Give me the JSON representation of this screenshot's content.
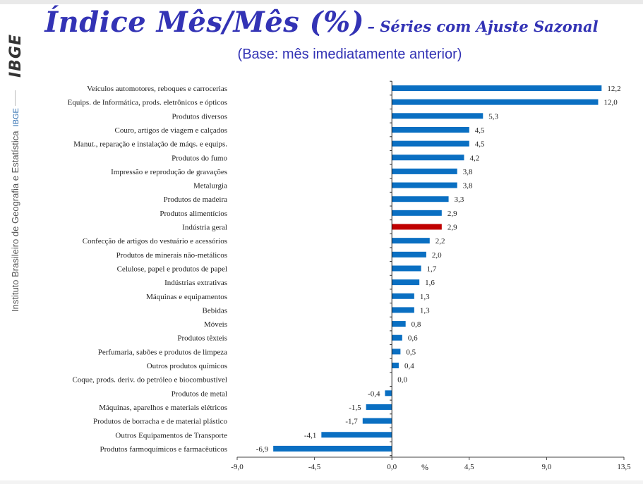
{
  "header": {
    "title": "Índice Mês/Mês (%)",
    "title_suffix": "– Séries com Ajuste Sazonal",
    "subtitle": "(Base: mês imediatamente anterior)"
  },
  "sidebar": {
    "logo_text": "IBGE",
    "institute_name": "Instituto Brasileiro de Geografia e Estatística",
    "institute_abbr": "IBGE"
  },
  "colors": {
    "bar_default": "#0a6fc2",
    "bar_highlight": "#c00000",
    "title": "#3333b5"
  },
  "chart_data": {
    "type": "bar",
    "orientation": "horizontal",
    "categories": [
      "Veículos automotores, reboques e carrocerias",
      "Equips. de Informática, prods. eletrônicos e ópticos",
      "Produtos diversos",
      "Couro, artigos de viagem e calçados",
      "Manut., reparação e instalação de máqs. e equips.",
      "Produtos do fumo",
      "Impressão e reprodução de gravações",
      "Metalurgia",
      "Produtos de madeira",
      "Produtos alimentícios",
      "Indústria geral",
      "Confecção de artigos do vestuário e acessórios",
      "Produtos de minerais não-metálicos",
      "Celulose, papel e produtos de papel",
      "Indústrias extrativas",
      "Máquinas e equipamentos",
      "Bebidas",
      "Móveis",
      "Produtos têxteis",
      "Perfumaria, sabões e produtos de limpeza",
      "Outros produtos químicos",
      "Coque, prods. deriv. do petróleo e biocombustível",
      "Produtos de metal",
      "Máquinas, aparelhos e materiais elétricos",
      "Produtos de borracha e de material plástico",
      "Outros Equipamentos de Transporte",
      "Produtos farmoquímicos e farmacêuticos"
    ],
    "values": [
      12.2,
      12.0,
      5.3,
      4.5,
      4.5,
      4.2,
      3.8,
      3.8,
      3.3,
      2.9,
      2.9,
      2.2,
      2.0,
      1.7,
      1.6,
      1.3,
      1.3,
      0.8,
      0.6,
      0.5,
      0.4,
      0.0,
      -0.4,
      -1.5,
      -1.7,
      -4.1,
      -6.9
    ],
    "value_labels": [
      "12,2",
      "12,0",
      "5,3",
      "4,5",
      "4,5",
      "4,2",
      "3,8",
      "3,8",
      "3,3",
      "2,9",
      "2,9",
      "2,2",
      "2,0",
      "1,7",
      "1,6",
      "1,3",
      "1,3",
      "0,8",
      "0,6",
      "0,5",
      "0,4",
      "0,0",
      "-0,4",
      "-1,5",
      "-1,7",
      "-4,1",
      "-6,9"
    ],
    "highlight_category": "Indústria geral",
    "xlim": [
      -9.0,
      13.5
    ],
    "xticks": [
      -9.0,
      -4.5,
      0.0,
      4.5,
      9.0,
      13.5
    ],
    "xtick_labels": [
      "-9,0",
      "-4,5",
      "0,0",
      "4,5",
      "9,0",
      "13,5"
    ],
    "xlabel": "%",
    "grid": false,
    "legend": "none"
  }
}
